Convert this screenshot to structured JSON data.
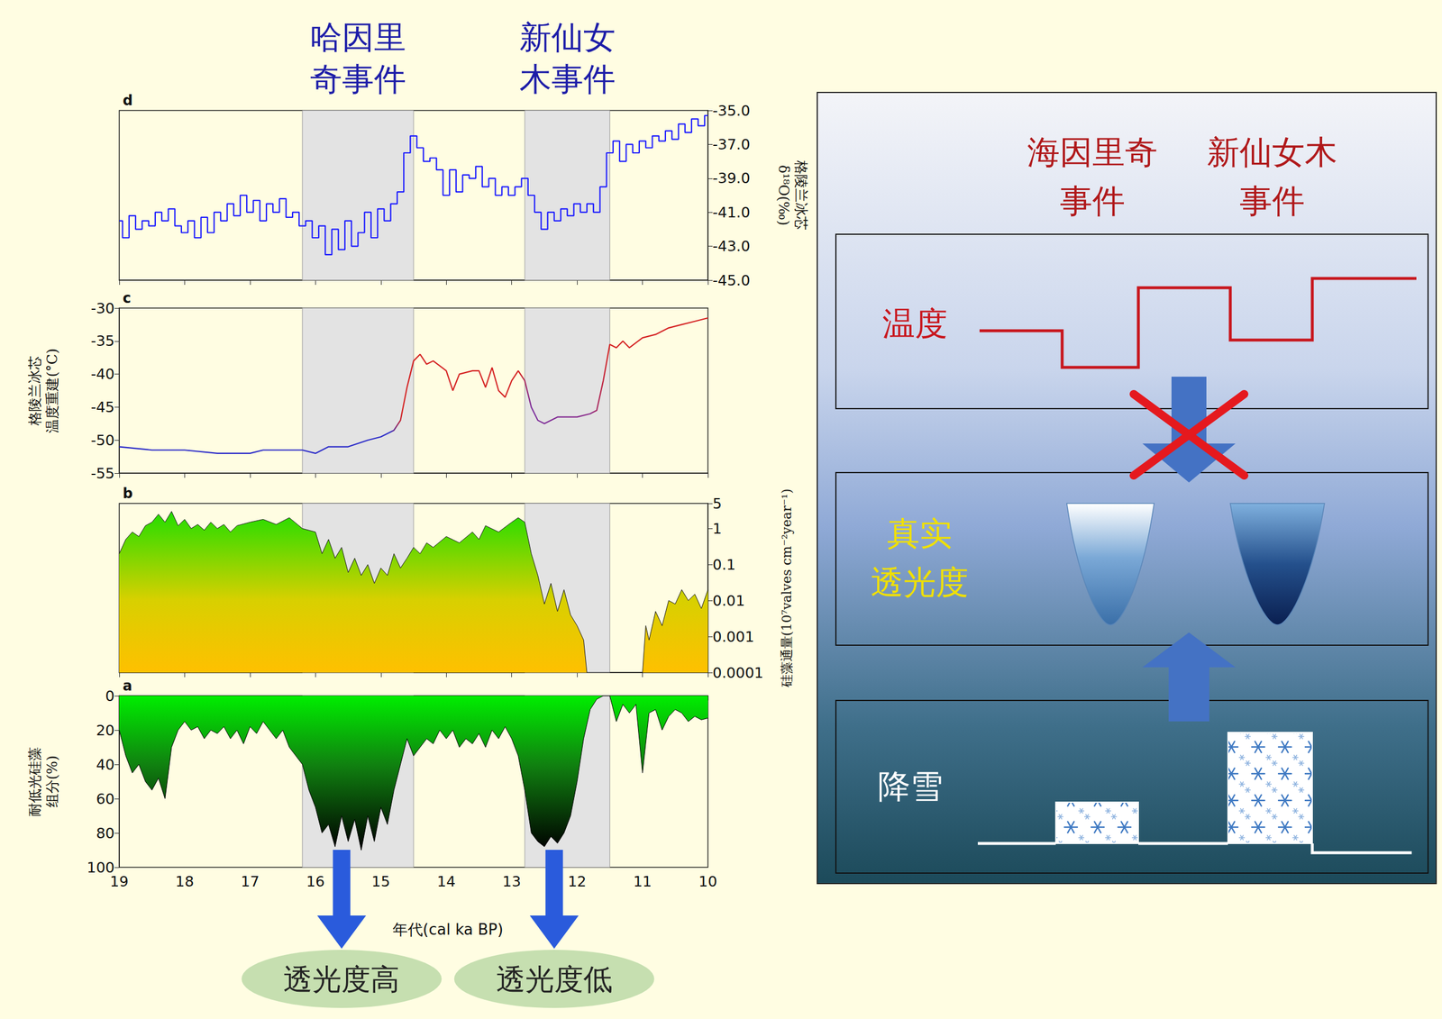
{
  "events": [
    {
      "label": "哈因里\n奇事件",
      "start": 16.2,
      "end": 14.5
    },
    {
      "label": "新仙女\n木事件",
      "start": 12.8,
      "end": 11.5
    }
  ],
  "annotations": [
    {
      "text": "透光度高",
      "x": 15.6
    },
    {
      "text": "透光度低",
      "x": 12.35
    }
  ],
  "chart_data": [
    {
      "type": "line",
      "panel_label": "d",
      "line_style": "step",
      "color": "#1a1aff",
      "tick_labels": "y",
      "xlim": [
        19,
        10
      ],
      "xticks": [
        19,
        18,
        17,
        16,
        15,
        14,
        13,
        12,
        11,
        10
      ],
      "y2label": "格陵兰冰芯\nδ¹⁸O(‰)",
      "y2lim": [
        -45,
        -35
      ],
      "y2ticks": [
        {
          "value": -45,
          "label": "-45.0"
        },
        {
          "value": -43,
          "label": "-43.0"
        },
        {
          "value": -41,
          "label": "-41.0"
        },
        {
          "value": -39,
          "label": "-39.0"
        },
        {
          "value": -37,
          "label": "-37.0"
        },
        {
          "value": -35,
          "label": "-35.0"
        }
      ],
      "x": [
        19.0,
        18.9,
        18.8,
        18.7,
        18.6,
        18.5,
        18.4,
        18.3,
        18.2,
        18.1,
        18.0,
        17.9,
        17.8,
        17.7,
        17.6,
        17.5,
        17.4,
        17.3,
        17.2,
        17.1,
        17.0,
        16.9,
        16.8,
        16.7,
        16.6,
        16.5,
        16.4,
        16.3,
        16.2,
        16.1,
        16.0,
        15.9,
        15.8,
        15.7,
        15.6,
        15.5,
        15.4,
        15.3,
        15.2,
        15.1,
        15.0,
        14.9,
        14.8,
        14.7,
        14.6,
        14.5,
        14.4,
        14.3,
        14.2,
        14.1,
        14.0,
        13.9,
        13.8,
        13.7,
        13.6,
        13.5,
        13.4,
        13.3,
        13.2,
        13.1,
        13.0,
        12.9,
        12.8,
        12.7,
        12.6,
        12.5,
        12.4,
        12.3,
        12.2,
        12.1,
        12.0,
        11.9,
        11.8,
        11.7,
        11.6,
        11.5,
        11.4,
        11.3,
        11.2,
        11.1,
        11.0,
        10.9,
        10.8,
        10.7,
        10.6,
        10.5,
        10.4,
        10.3,
        10.2,
        10.1,
        10.0
      ],
      "values": [
        -41.5,
        -42.5,
        -41.2,
        -42.0,
        -41.5,
        -41.8,
        -41.0,
        -41.5,
        -40.8,
        -41.8,
        -42.2,
        -41.5,
        -42.5,
        -41.3,
        -42.2,
        -41.0,
        -41.5,
        -40.5,
        -41.2,
        -40.0,
        -41.0,
        -40.3,
        -41.5,
        -40.5,
        -41.0,
        -40.2,
        -41.3,
        -41.0,
        -41.8,
        -41.5,
        -42.5,
        -41.8,
        -43.5,
        -42.0,
        -43.2,
        -41.5,
        -43.0,
        -42.2,
        -41.0,
        -42.5,
        -40.8,
        -41.5,
        -40.5,
        -39.8,
        -37.5,
        -36.5,
        -37.2,
        -38.0,
        -37.8,
        -38.5,
        -40.0,
        -38.5,
        -39.8,
        -38.8,
        -39.0,
        -38.3,
        -39.5,
        -39.0,
        -40.0,
        -39.5,
        -40.0,
        -39.5,
        -39.0,
        -40.0,
        -41.0,
        -42.0,
        -41.0,
        -41.5,
        -40.8,
        -41.2,
        -40.5,
        -41.0,
        -40.5,
        -41.0,
        -39.5,
        -37.5,
        -36.8,
        -38.0,
        -37.0,
        -37.5,
        -36.8,
        -37.2,
        -36.5,
        -36.8,
        -36.2,
        -36.7,
        -35.8,
        -36.3,
        -35.5,
        -35.9,
        -35.3
      ]
    },
    {
      "type": "line",
      "panel_label": "c",
      "color": "#d42020",
      "tick_labels": "y",
      "xlim": [
        19,
        10
      ],
      "xticks": [
        19,
        18,
        17,
        16,
        15,
        14,
        13,
        12,
        11,
        10
      ],
      "ylabel": "格陵兰冰芯\n温度重建(°C)",
      "ylim": [
        -55,
        -30
      ],
      "yticks": [
        -55,
        -50,
        -45,
        -40,
        -35,
        -30
      ],
      "x": [
        19,
        18.5,
        18,
        17.5,
        17,
        16.8,
        16.5,
        16.2,
        16,
        15.8,
        15.5,
        15.2,
        15,
        14.8,
        14.7,
        14.6,
        14.5,
        14.4,
        14.3,
        14.2,
        14,
        13.9,
        13.8,
        13.6,
        13.5,
        13.4,
        13.3,
        13.2,
        13.1,
        13,
        12.9,
        12.8,
        12.7,
        12.6,
        12.5,
        12.3,
        12,
        11.8,
        11.7,
        11.6,
        11.5,
        11.4,
        11.3,
        11.2,
        11,
        10.8,
        10.6,
        10.4,
        10.2,
        10
      ],
      "values": [
        -51,
        -51.5,
        -51.5,
        -52,
        -52,
        -51.5,
        -51.5,
        -51.5,
        -52,
        -51,
        -51,
        -50,
        -49.5,
        -48.5,
        -47,
        -42,
        -38,
        -37,
        -38.5,
        -38,
        -39.5,
        -42.5,
        -40,
        -39.5,
        -39.5,
        -42,
        -39,
        -42.5,
        -43.5,
        -41,
        -39.5,
        -41,
        -45,
        -47,
        -47.5,
        -46.5,
        -46.5,
        -46,
        -45.5,
        -41,
        -35.5,
        -36,
        -35,
        -36,
        -34.5,
        -34,
        -33,
        -32.5,
        -32,
        -31.5
      ]
    },
    {
      "type": "area",
      "panel_label": "b",
      "color": "#1a1a1a",
      "log": true,
      "tick_labels": "y",
      "xlim": [
        19,
        10
      ],
      "xticks": [
        19,
        18,
        17,
        16,
        15,
        14,
        13,
        12,
        11,
        10
      ],
      "y2label": "硅藻通量(10⁷valves cm⁻²year⁻¹)",
      "y2lim": [
        0.0001,
        5
      ],
      "y2ticks": [
        0.0001,
        0.001,
        0.01,
        0.1,
        1,
        5
      ],
      "x": [
        19,
        18.9,
        18.8,
        18.7,
        18.6,
        18.5,
        18.4,
        18.3,
        18.2,
        18.1,
        18,
        17.9,
        17.8,
        17.7,
        17.6,
        17.5,
        17.4,
        17.3,
        17.2,
        17,
        16.8,
        16.6,
        16.4,
        16.2,
        16,
        15.9,
        15.8,
        15.7,
        15.6,
        15.5,
        15.4,
        15.3,
        15.2,
        15.1,
        15,
        14.9,
        14.8,
        14.7,
        14.6,
        14.5,
        14.4,
        14.3,
        14.2,
        14,
        13.8,
        13.6,
        13.5,
        13.4,
        13.2,
        13,
        12.9,
        12.8,
        12.7,
        12.6,
        12.5,
        12.4,
        12.3,
        12.2,
        12.1,
        12,
        11.9,
        11.85,
        11,
        10.95,
        10.9,
        10.8,
        10.7,
        10.6,
        10.5,
        10.4,
        10.3,
        10.2,
        10.1,
        10
      ],
      "values": [
        0.2,
        0.5,
        0.8,
        0.6,
        1.2,
        1.5,
        2.5,
        1.5,
        3,
        1.2,
        1.8,
        1,
        1.3,
        0.9,
        1.5,
        1,
        1.3,
        0.8,
        1.2,
        1.5,
        1.8,
        1.3,
        2,
        1,
        0.8,
        0.2,
        0.5,
        0.15,
        0.3,
        0.06,
        0.15,
        0.05,
        0.1,
        0.03,
        0.08,
        0.05,
        0.2,
        0.08,
        0.15,
        0.3,
        0.2,
        0.4,
        0.3,
        0.6,
        0.4,
        0.8,
        0.5,
        1.2,
        0.8,
        1.5,
        2,
        1.5,
        0.2,
        0.05,
        0.008,
        0.03,
        0.005,
        0.02,
        0.004,
        0.002,
        0.0008,
        0.0001,
        0.0001,
        0.002,
        0.0008,
        0.005,
        0.002,
        0.01,
        0.008,
        0.02,
        0.01,
        0.015,
        0.006,
        0.02
      ]
    },
    {
      "type": "area",
      "panel_label": "a",
      "color": "#000000",
      "xlabel": "年代(cal ka BP)",
      "xlim": [
        19,
        10
      ],
      "xticks": [
        19,
        18,
        17,
        16,
        15,
        14,
        13,
        12,
        11,
        10
      ],
      "ylabel": "耐低光硅藻\n组分(%)",
      "ylim": [
        100,
        0
      ],
      "yticks": [
        0,
        20,
        40,
        60,
        80,
        100
      ],
      "x": [
        19.0,
        18.9,
        18.8,
        18.7,
        18.6,
        18.5,
        18.4,
        18.3,
        18.2,
        18.1,
        18.0,
        17.9,
        17.8,
        17.7,
        17.6,
        17.5,
        17.4,
        17.3,
        17.2,
        17.1,
        17.0,
        16.9,
        16.8,
        16.7,
        16.6,
        16.5,
        16.4,
        16.3,
        16.2,
        16.1,
        16.0,
        15.9,
        15.8,
        15.7,
        15.6,
        15.5,
        15.4,
        15.3,
        15.2,
        15.1,
        15.0,
        14.9,
        14.8,
        14.7,
        14.6,
        14.5,
        14.4,
        14.3,
        14.2,
        14.1,
        14.0,
        13.9,
        13.8,
        13.7,
        13.6,
        13.5,
        13.4,
        13.3,
        13.2,
        13.1,
        13.0,
        12.9,
        12.8,
        12.7,
        12.6,
        12.5,
        12.4,
        12.3,
        12.2,
        12.1,
        12.0,
        11.9,
        11.8,
        11.7,
        11.6,
        11.5,
        11.4,
        11.3,
        11.2,
        11.1,
        11.0,
        10.9,
        10.8,
        10.7,
        10.6,
        10.5,
        10.4,
        10.3,
        10.2,
        10.1,
        10.0
      ],
      "values": [
        20,
        35,
        45,
        40,
        50,
        55,
        48,
        60,
        30,
        20,
        15,
        20,
        18,
        25,
        20,
        22,
        18,
        25,
        20,
        28,
        18,
        22,
        15,
        20,
        25,
        20,
        30,
        35,
        40,
        55,
        65,
        80,
        75,
        88,
        70,
        85,
        72,
        90,
        70,
        85,
        65,
        75,
        55,
        40,
        25,
        35,
        30,
        25,
        28,
        20,
        25,
        20,
        30,
        25,
        28,
        22,
        30,
        20,
        25,
        18,
        25,
        35,
        55,
        80,
        85,
        88,
        82,
        86,
        80,
        70,
        50,
        25,
        8,
        2,
        0,
        0,
        15,
        5,
        10,
        5,
        45,
        10,
        8,
        20,
        12,
        8,
        10,
        15,
        12,
        14,
        13
      ]
    }
  ],
  "diagram": {
    "events": [
      "海因里奇\n事件",
      "新仙女木\n事件"
    ],
    "rows": [
      {
        "label": "温度"
      },
      {
        "label": "真实\n透光度"
      },
      {
        "label": "降雪"
      }
    ]
  }
}
